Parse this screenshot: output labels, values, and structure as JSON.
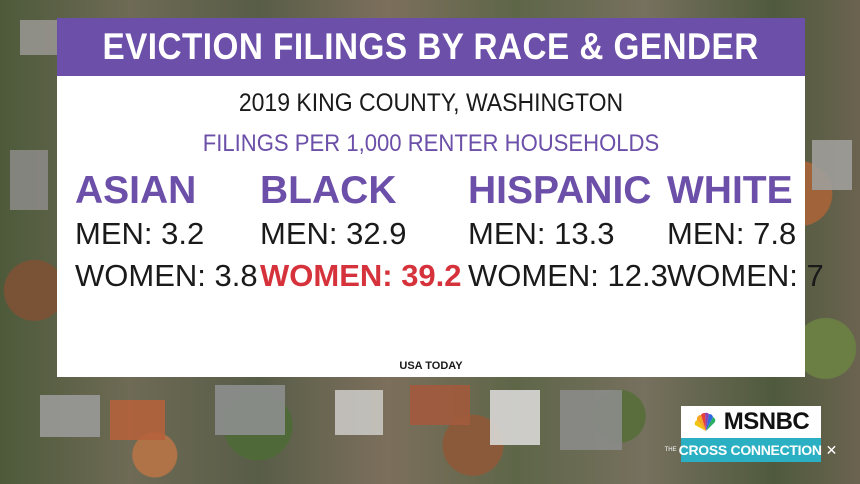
{
  "title": "EVICTION FILINGS BY RACE & GENDER",
  "subtitle": "2019 KING COUNTY, WASHINGTON",
  "metric_label": "FILINGS PER 1,000 RENTER HOUSEHOLDS",
  "groups": [
    {
      "name": "ASIAN",
      "men": "MEN: 3.2",
      "women": "WOMEN: 3.8",
      "men_value": 3.2,
      "women_value": 3.8
    },
    {
      "name": "BLACK",
      "men": "MEN: 32.9",
      "women": "WOMEN: 39.2",
      "men_value": 32.9,
      "women_value": 39.2
    },
    {
      "name": "HISPANIC",
      "men": "MEN: 13.3",
      "women": "WOMEN: 12.3",
      "men_value": 13.3,
      "women_value": 12.3
    },
    {
      "name": "WHITE",
      "men": "MEN: 7.8",
      "women": "WOMEN: 7",
      "men_value": 7.8,
      "women_value": 7
    }
  ],
  "source": "USA TODAY",
  "logo": {
    "network": "MSNBC",
    "show_prefix": "THE",
    "show_name": "CROSS CONNECTION",
    "show_mark": "✕"
  },
  "colors": {
    "accent_purple": "#6b4fa8",
    "highlight_red": "#d6323c",
    "logo_teal": "#2ab0c2"
  }
}
